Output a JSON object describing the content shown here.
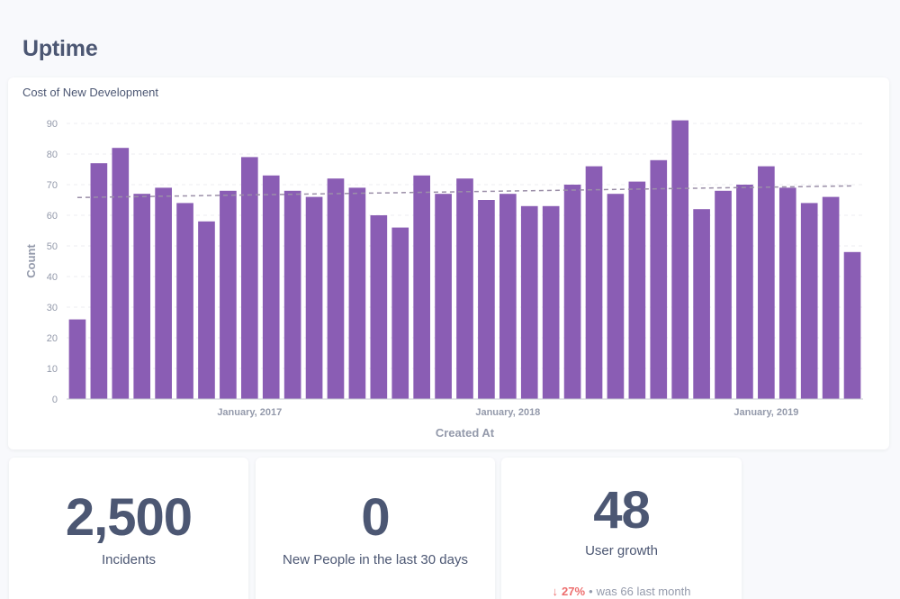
{
  "dashboard": {
    "title": "Uptime"
  },
  "chart_card": {
    "title": "Cost of New Development"
  },
  "chart_data": {
    "type": "bar",
    "title": "Cost of New Development",
    "xlabel": "Created At",
    "ylabel": "Count",
    "ylim": [
      0,
      90
    ],
    "y_ticks": [
      0,
      10,
      20,
      30,
      40,
      50,
      60,
      70,
      80,
      90
    ],
    "x_tick_labels": [
      {
        "index": 8,
        "label": "January, 2017"
      },
      {
        "index": 20,
        "label": "January, 2018"
      },
      {
        "index": 32,
        "label": "January, 2019"
      }
    ],
    "values": [
      26,
      77,
      82,
      67,
      69,
      64,
      58,
      68,
      79,
      73,
      68,
      66,
      72,
      69,
      60,
      56,
      73,
      67,
      72,
      65,
      67,
      63,
      63,
      70,
      76,
      67,
      71,
      78,
      91,
      62,
      68,
      70,
      76,
      69,
      64,
      66,
      48
    ],
    "trendline": {
      "start": 65.8,
      "end": 69.6
    },
    "colors": {
      "bar": "#8a5db4",
      "trend": "#9b8fa8",
      "grid": "#eceef2",
      "axis_text": "#949aab"
    },
    "grid": true
  },
  "scalars": [
    {
      "value": "2,500",
      "label": "Incidents"
    },
    {
      "value": "0",
      "label": "New People in the last 30 days"
    },
    {
      "value": "48",
      "label": "User growth"
    }
  ],
  "trend": {
    "arrow": "↓",
    "percent": "27%",
    "separator": "•",
    "was": "was 66",
    "period": "last month"
  }
}
